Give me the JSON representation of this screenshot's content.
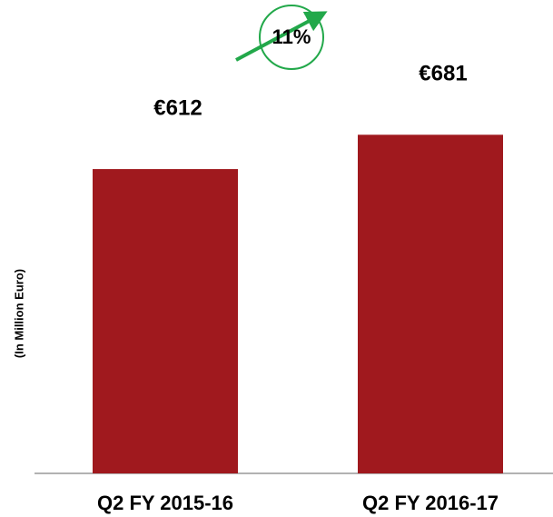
{
  "chart_data": {
    "type": "bar",
    "y_label": "(In Million Euro)",
    "annotation": "11%",
    "categories": [
      "Q2 FY 2015-16",
      "Q2 FY 2016-17"
    ],
    "values": [
      612,
      681
    ],
    "value_labels": [
      "€612",
      "€681"
    ],
    "color": "#a0191e",
    "ylim": [
      0,
      952
    ]
  }
}
